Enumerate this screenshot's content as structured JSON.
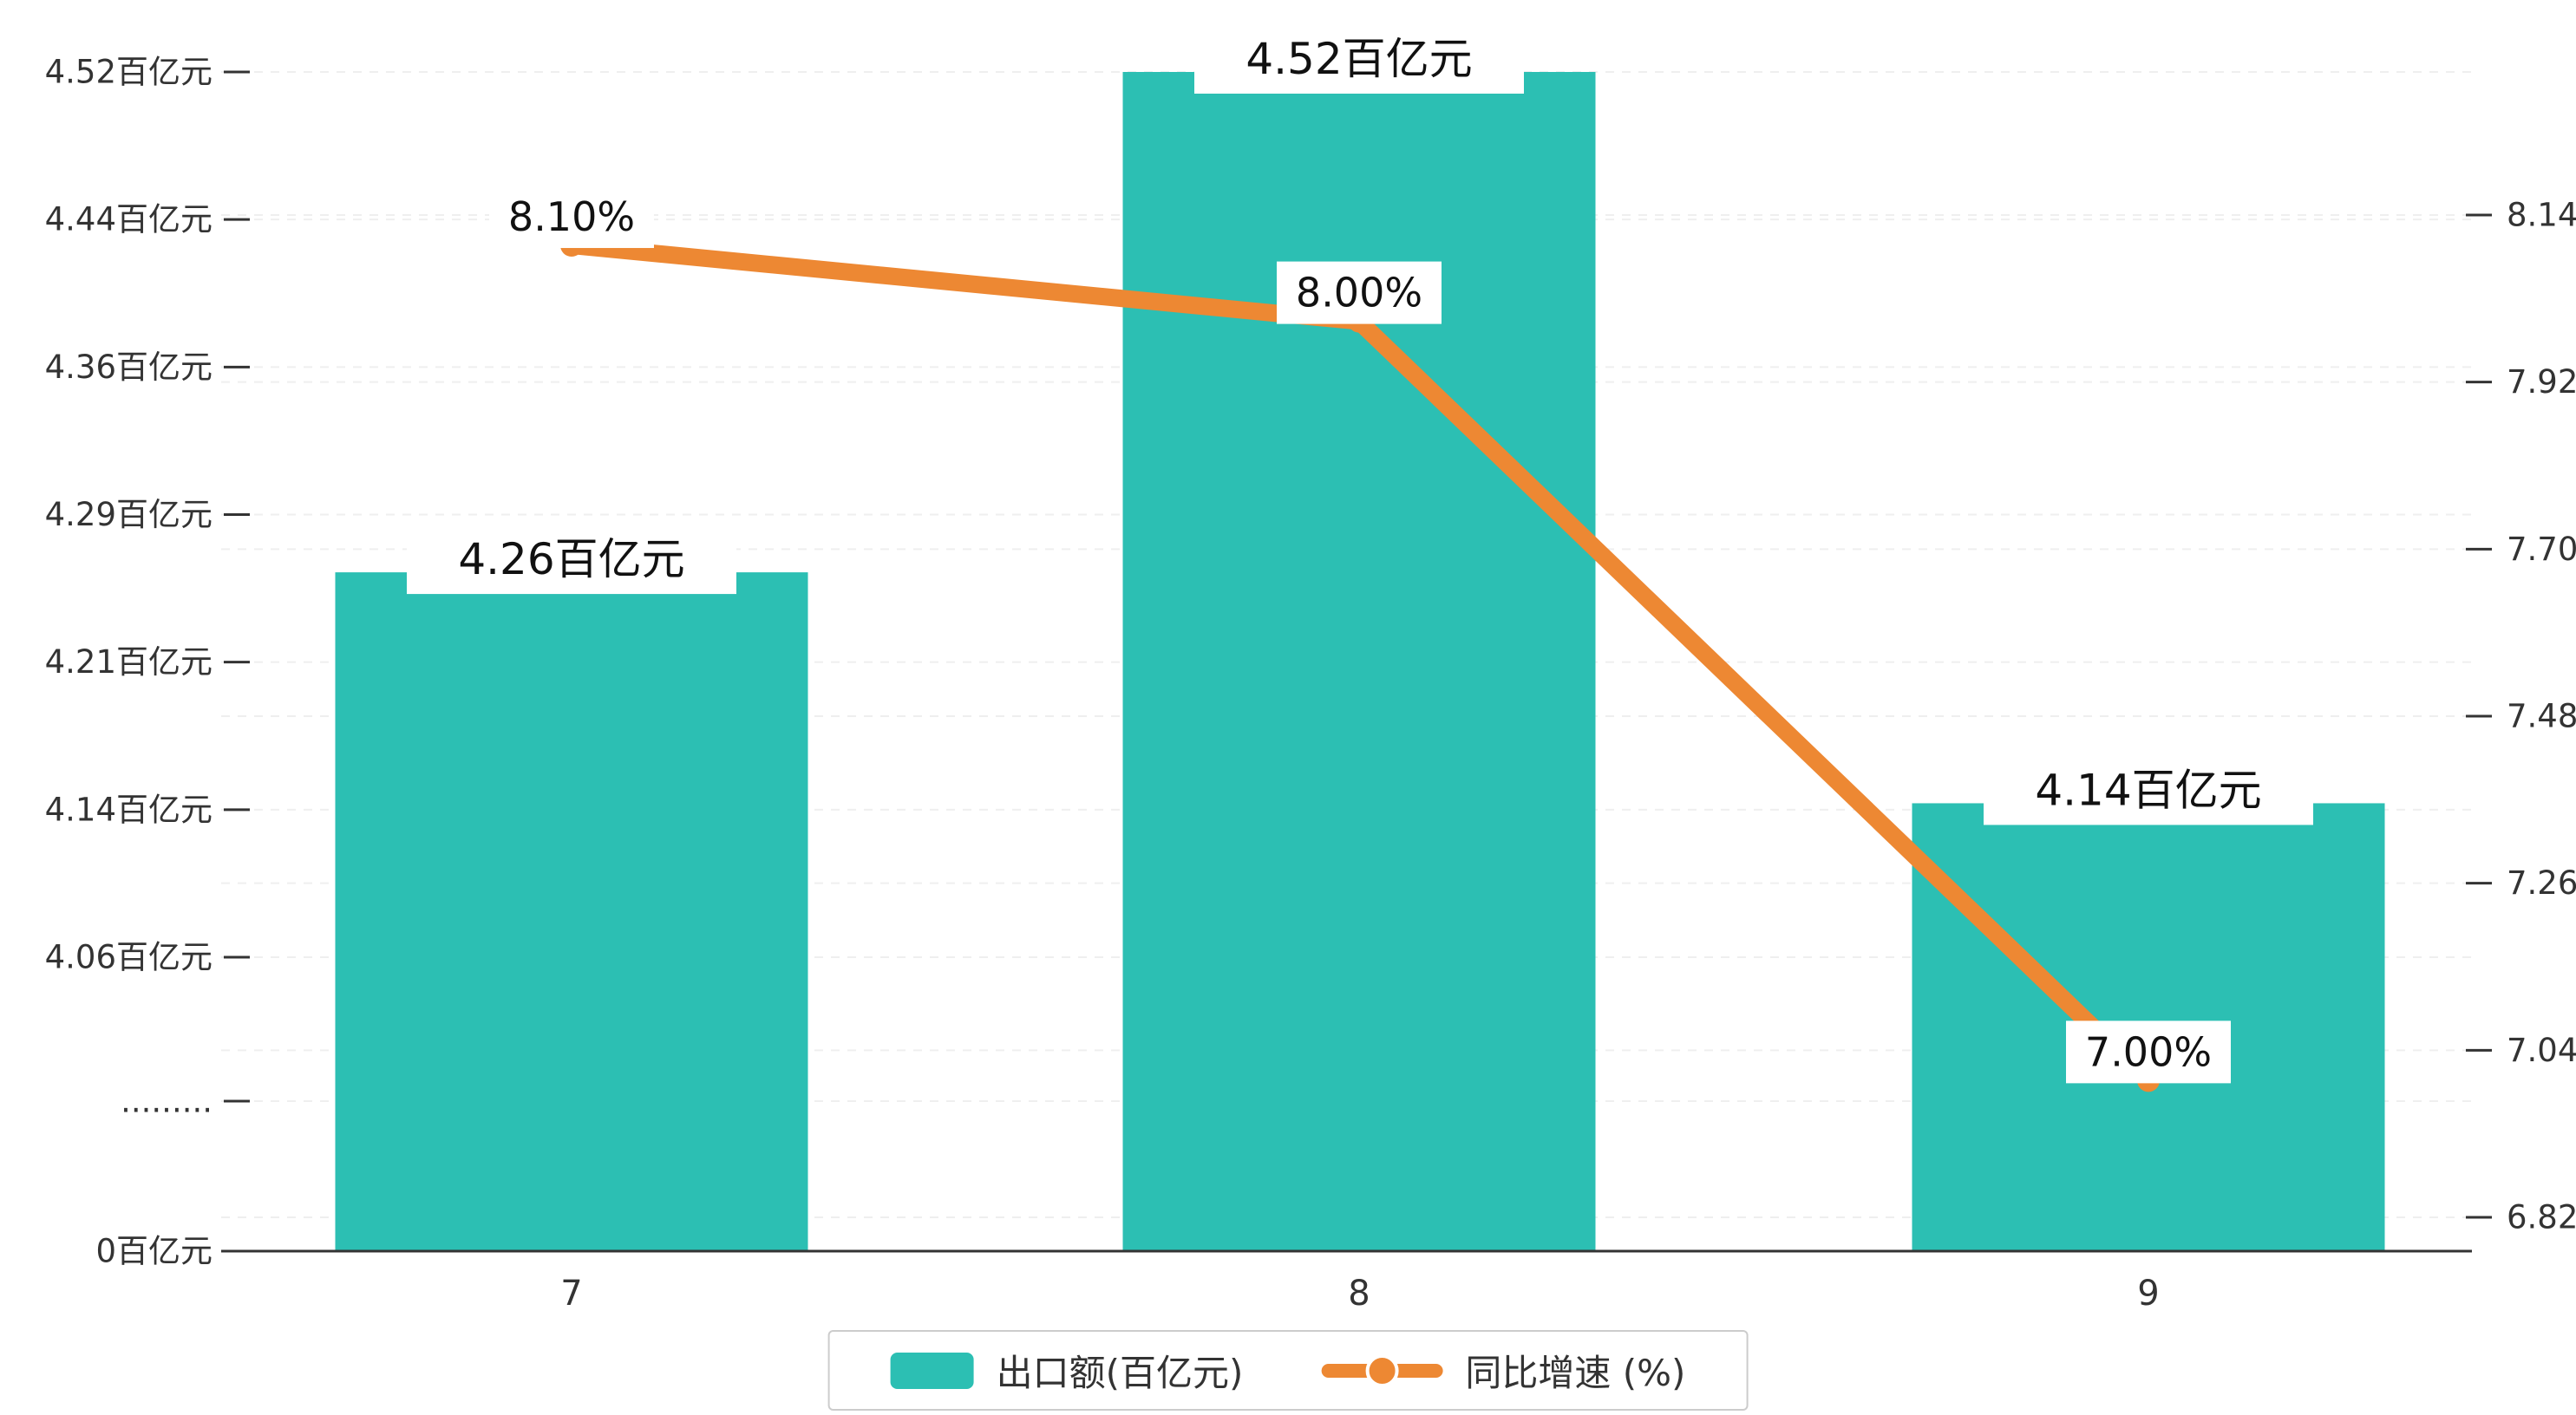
{
  "chart_data": {
    "type": "bar+line",
    "title": "",
    "categories": [
      "7",
      "8",
      "9"
    ],
    "series": [
      {
        "name": "出口额(百亿元)",
        "type": "bar",
        "axis": "left",
        "color": "#2CBFB3",
        "values": [
          4.26,
          4.52,
          4.14
        ],
        "data_labels": [
          "4.26百亿元",
          "4.52百亿元",
          "4.14百亿元"
        ]
      },
      {
        "name": "同比增速 (%)",
        "type": "line",
        "axis": "right",
        "color": "#ED8833",
        "values": [
          8.1,
          8.0,
          7.0
        ],
        "data_labels": [
          "8.10%",
          "8.00%",
          "7.00%"
        ]
      }
    ],
    "left_axis": {
      "tick_labels": [
        "4.52百亿元",
        "4.44百亿元",
        "4.36百亿元",
        "4.29百亿元",
        "4.21百亿元",
        "4.14百亿元",
        "4.06百亿元",
        ".........",
        "0百亿元"
      ],
      "tick_values": [
        4.52,
        4.44,
        4.36,
        4.29,
        4.21,
        4.14,
        4.06,
        null,
        0
      ],
      "axis_break": true,
      "plot_range": [
        4.06,
        4.52
      ]
    },
    "right_axis": {
      "tick_labels": [
        "8.14",
        "7.92",
        "7.70",
        "7.48",
        "7.26",
        "7.04",
        "6.82"
      ],
      "tick_values": [
        8.14,
        7.92,
        7.7,
        7.48,
        7.26,
        7.04,
        6.82
      ],
      "range": [
        6.82,
        8.14
      ]
    },
    "x_axis": {
      "labels": [
        "7",
        "8",
        "9"
      ]
    },
    "legend": {
      "position": "bottom",
      "items": [
        {
          "label": "出口额(百亿元)",
          "marker": "bar-swatch",
          "color": "#2CBFB3"
        },
        {
          "label": "同比增速 (%)",
          "marker": "line-dot",
          "color": "#ED8833"
        }
      ]
    },
    "grid": "dashed-horizontal",
    "colors": {
      "axis": "#333333",
      "gridline": "#efefef",
      "label_text": "#111111",
      "label_bg": "#ffffff"
    }
  }
}
